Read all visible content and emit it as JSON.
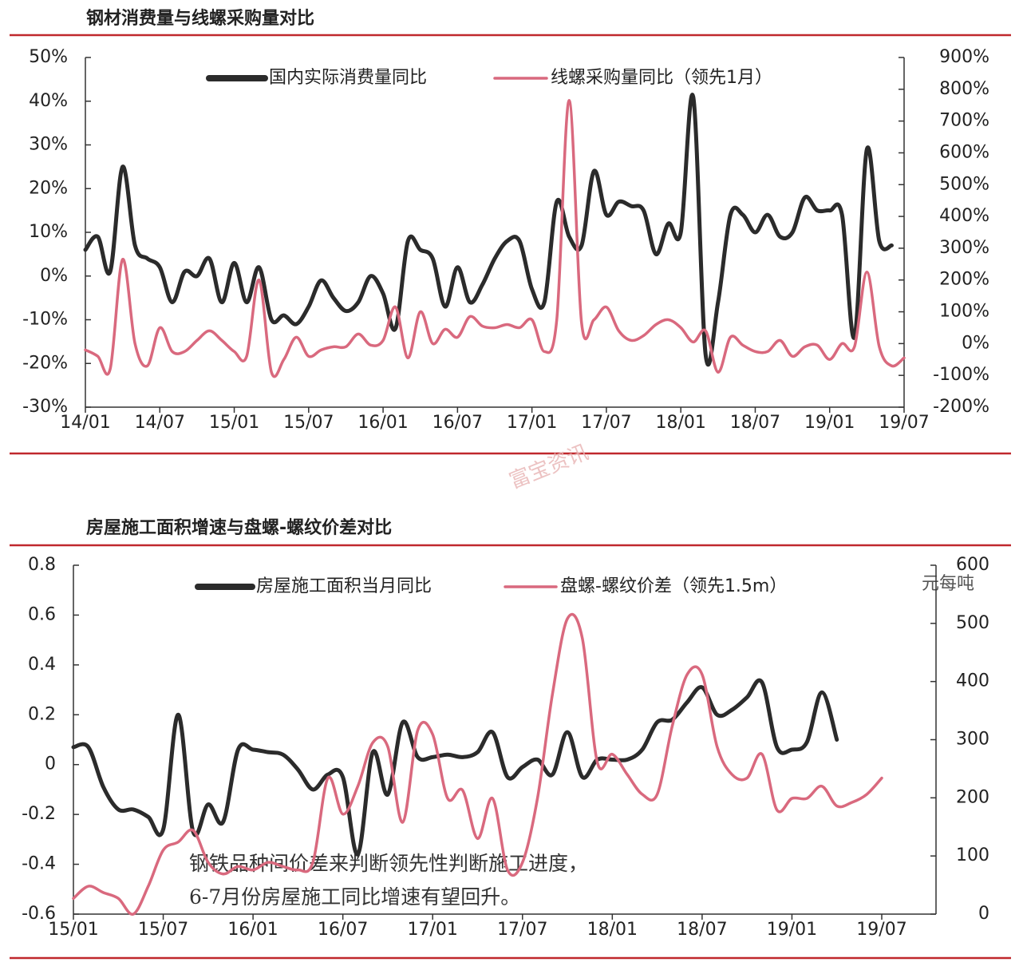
{
  "watermark": "富宝资讯",
  "chart_data": [
    {
      "type": "line",
      "title": "钢材消费量与线螺采购量对比",
      "x": [
        "14/01",
        "14/02",
        "14/03",
        "14/04",
        "14/05",
        "14/06",
        "14/07",
        "14/08",
        "14/09",
        "14/10",
        "14/11",
        "14/12",
        "15/01",
        "15/02",
        "15/03",
        "15/04",
        "15/05",
        "15/06",
        "15/07",
        "15/08",
        "15/09",
        "15/10",
        "15/11",
        "15/12",
        "16/01",
        "16/02",
        "16/03",
        "16/04",
        "16/05",
        "16/06",
        "16/07",
        "16/08",
        "16/09",
        "16/10",
        "16/11",
        "16/12",
        "17/01",
        "17/02",
        "17/03",
        "17/04",
        "17/05",
        "17/06",
        "17/07",
        "17/08",
        "17/09",
        "17/10",
        "17/11",
        "17/12",
        "18/01",
        "18/02",
        "18/03",
        "18/04",
        "18/05",
        "18/06",
        "18/07",
        "18/08",
        "18/09",
        "18/10",
        "18/11",
        "18/12",
        "19/01",
        "19/02",
        "19/03",
        "19/04",
        "19/05",
        "19/06",
        "19/07"
      ],
      "xticks": [
        "14/01",
        "14/07",
        "15/01",
        "15/07",
        "16/01",
        "16/07",
        "17/01",
        "17/07",
        "18/01",
        "18/07",
        "19/01",
        "19/07"
      ],
      "ylim": [
        -30,
        50
      ],
      "yticks": [
        {
          "value": -30,
          "label": "-30%"
        },
        {
          "value": -20,
          "label": "-20%"
        },
        {
          "value": -10,
          "label": "-10%"
        },
        {
          "value": 0,
          "label": "0%"
        },
        {
          "value": 10,
          "label": "10%"
        },
        {
          "value": 20,
          "label": "20%"
        },
        {
          "value": 30,
          "label": "30%"
        },
        {
          "value": 40,
          "label": "40%"
        },
        {
          "value": 50,
          "label": "50%"
        }
      ],
      "y2lim": [
        -200,
        900
      ],
      "y2ticks": [
        {
          "value": -200,
          "label": "-200%"
        },
        {
          "value": -100,
          "label": "-100%"
        },
        {
          "value": 0,
          "label": "0%"
        },
        {
          "value": 100,
          "label": "100%"
        },
        {
          "value": 200,
          "label": "200%"
        },
        {
          "value": 300,
          "label": "300%"
        },
        {
          "value": 400,
          "label": "400%"
        },
        {
          "value": 500,
          "label": "500%"
        },
        {
          "value": 600,
          "label": "600%"
        },
        {
          "value": 700,
          "label": "700%"
        },
        {
          "value": 800,
          "label": "800%"
        },
        {
          "value": 900,
          "label": "900%"
        }
      ],
      "series": [
        {
          "name": "国内实际消费量同比",
          "color": "#2b2b2b",
          "values": [
            6,
            9,
            1,
            25,
            7,
            4,
            2,
            -6,
            1,
            0,
            4,
            -6,
            3,
            -6,
            2,
            -10,
            -9,
            -11,
            -7,
            -1,
            -5,
            -8,
            -6,
            0,
            -4,
            -12,
            8,
            6,
            4,
            -7,
            2,
            -6,
            -2,
            4,
            8,
            8,
            -3,
            -6,
            17,
            9,
            7,
            24,
            14,
            17,
            16,
            15,
            5,
            12,
            10,
            41,
            -18,
            -6,
            14,
            14,
            10,
            14,
            9,
            10,
            18,
            15,
            15,
            14,
            -14,
            29,
            8,
            7,
            null
          ]
        },
        {
          "name": "线螺采购量同比（领先1月）",
          "color": "#d9697e",
          "axis": "y2",
          "values": [
            -20,
            -40,
            -80,
            265,
            0,
            -70,
            50,
            -25,
            -25,
            10,
            40,
            10,
            -25,
            -40,
            200,
            -90,
            -50,
            20,
            -40,
            -20,
            -10,
            -10,
            30,
            -5,
            10,
            115,
            -45,
            100,
            0,
            45,
            20,
            85,
            55,
            50,
            60,
            50,
            75,
            -25,
            75,
            765,
            65,
            75,
            115,
            40,
            10,
            25,
            60,
            75,
            50,
            5,
            40,
            -90,
            20,
            -5,
            -25,
            -25,
            10,
            -40,
            -10,
            -5,
            -50,
            0,
            -10,
            225,
            -10,
            -70,
            -45
          ]
        }
      ]
    },
    {
      "type": "line",
      "title": "房屋施工面积增速与盘螺-螺纹价差对比",
      "x": [
        "15/01",
        "15/02",
        "15/03",
        "15/04",
        "15/05",
        "15/06",
        "15/07",
        "15/08",
        "15/09",
        "15/10",
        "15/11",
        "15/12",
        "16/01",
        "16/02",
        "16/03",
        "16/04",
        "16/05",
        "16/06",
        "16/07",
        "16/08",
        "16/09",
        "16/10",
        "16/11",
        "16/12",
        "17/01",
        "17/02",
        "17/03",
        "17/04",
        "17/05",
        "17/06",
        "17/07",
        "17/08",
        "17/09",
        "17/10",
        "17/11",
        "17/12",
        "18/01",
        "18/02",
        "18/03",
        "18/04",
        "18/05",
        "18/06",
        "18/07",
        "18/08",
        "18/09",
        "18/10",
        "18/11",
        "18/12",
        "19/01",
        "19/02",
        "19/03",
        "19/04",
        "19/05",
        "19/06",
        "19/07"
      ],
      "xticks": [
        "15/01",
        "15/07",
        "16/01",
        "16/07",
        "17/01",
        "17/07",
        "18/01",
        "18/07",
        "19/01",
        "19/07"
      ],
      "ylim": [
        -0.6,
        0.8
      ],
      "yticks": [
        -0.6,
        -0.4,
        -0.2,
        0,
        0.2,
        0.4,
        0.6,
        0.8
      ],
      "y2lim": [
        0,
        600
      ],
      "y2ticks": [
        0,
        100,
        200,
        300,
        400,
        500,
        600
      ],
      "y2label": "元每吨",
      "annotations": [
        "钢铁品种间价差来判断领先性判断施工进度，",
        "6-7月份房屋施工同比增速有望回升。"
      ],
      "series": [
        {
          "name": "房屋施工面积当月同比",
          "color": "#2b2b2b",
          "values": [
            0.07,
            0.07,
            -0.09,
            -0.18,
            -0.18,
            -0.21,
            -0.26,
            0.2,
            -0.27,
            -0.16,
            -0.23,
            0.06,
            0.06,
            0.05,
            0.04,
            -0.02,
            -0.1,
            -0.04,
            -0.05,
            -0.36,
            0.05,
            -0.12,
            0.17,
            0.03,
            0.03,
            0.04,
            0.03,
            0.05,
            0.13,
            -0.05,
            -0.01,
            0.02,
            -0.04,
            0.13,
            -0.05,
            0.02,
            0.02,
            0.02,
            0.06,
            0.17,
            0.18,
            0.25,
            0.31,
            0.2,
            0.22,
            0.27,
            0.33,
            0.07,
            0.06,
            0.09,
            0.29,
            0.1,
            null,
            null,
            null
          ]
        },
        {
          "name": "盘螺-螺纹价差（领先1.5m）",
          "color": "#d9697e",
          "axis": "y2",
          "values": [
            27,
            48,
            37,
            27,
            0,
            48,
            110,
            124,
            144,
            89,
            69,
            82,
            76,
            89,
            82,
            76,
            89,
            234,
            172,
            220,
            295,
            288,
            158,
            316,
            309,
            199,
            213,
            130,
            199,
            76,
            89,
            199,
            378,
            508,
            474,
            261,
            275,
            240,
            206,
            206,
            323,
            412,
            412,
            288,
            240,
            234,
            275,
            179,
            199,
            199,
            220,
            186,
            192,
            206,
            234
          ]
        }
      ]
    }
  ]
}
